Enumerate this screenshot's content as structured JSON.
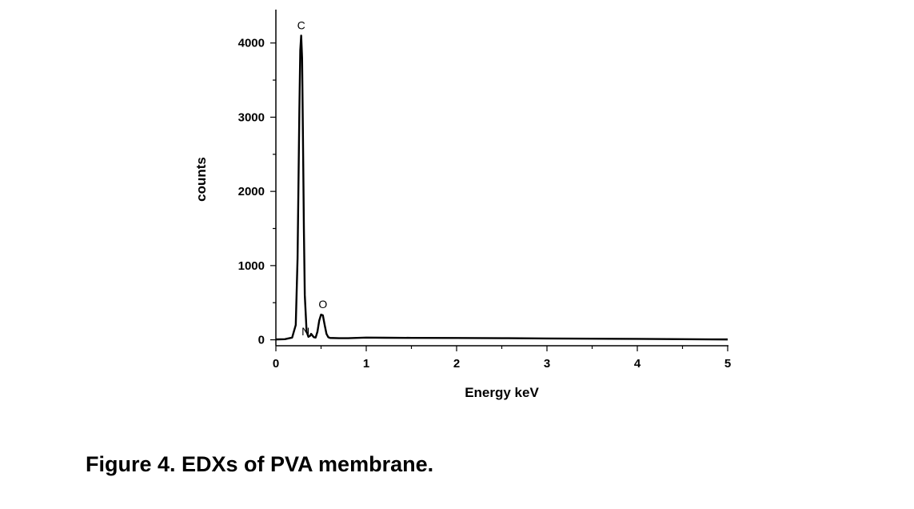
{
  "caption": "Figure 4. EDXs of PVA membrane.",
  "chart_data": {
    "type": "line",
    "title": "",
    "xlabel": "Energy keV",
    "ylabel": "counts",
    "xlim": [
      0,
      5
    ],
    "ylim": [
      -80,
      4450
    ],
    "xticks": [
      0,
      1,
      2,
      3,
      4,
      5
    ],
    "yticks": [
      0,
      1000,
      2000,
      3000,
      4000
    ],
    "grid": false,
    "line_color": "#000000",
    "series": [
      {
        "x": [
          0.0,
          0.1,
          0.18,
          0.22,
          0.24,
          0.26,
          0.27,
          0.28,
          0.29,
          0.3,
          0.31,
          0.32,
          0.34,
          0.36,
          0.38,
          0.39,
          0.4,
          0.42,
          0.44,
          0.46,
          0.48,
          0.5,
          0.52,
          0.54,
          0.56,
          0.58,
          0.6,
          0.7,
          0.8,
          1.0,
          1.2,
          1.5,
          2.0,
          2.5,
          3.0,
          3.5,
          4.0,
          4.5,
          5.0
        ],
        "y": [
          5,
          8,
          30,
          200,
          1100,
          3100,
          3900,
          4100,
          3800,
          2700,
          1500,
          600,
          110,
          40,
          55,
          80,
          65,
          35,
          30,
          110,
          260,
          340,
          330,
          200,
          80,
          35,
          25,
          22,
          22,
          30,
          28,
          26,
          24,
          22,
          18,
          15,
          12,
          8,
          5
        ]
      }
    ],
    "annotations": [
      {
        "text": "C",
        "x": 0.28,
        "y": 4100
      },
      {
        "text": "N",
        "x": 0.4,
        "y": 80
      },
      {
        "text": "O",
        "x": 0.52,
        "y": 340
      }
    ]
  }
}
